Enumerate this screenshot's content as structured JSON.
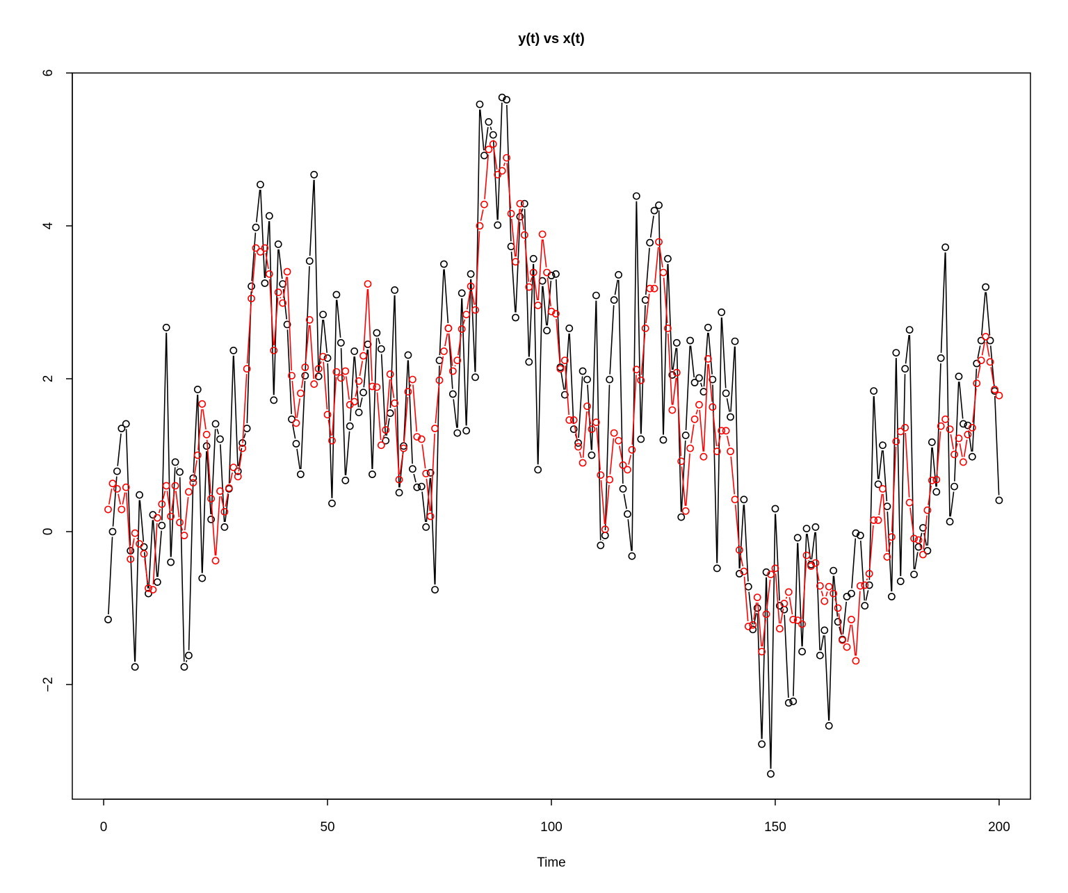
{
  "chart_data": {
    "type": "line",
    "title": "y(t) vs x(t)",
    "xlabel": "Time",
    "ylabel": "",
    "xlim": [
      -7,
      207
    ],
    "ylim": [
      -3.5,
      6
    ],
    "x_ticks": [
      0,
      50,
      100,
      150,
      200
    ],
    "y_ticks": [
      -2,
      0,
      2,
      4,
      6
    ],
    "grid": false,
    "legend": "none",
    "x": [
      1,
      2,
      3,
      4,
      5,
      6,
      7,
      8,
      9,
      10,
      11,
      12,
      13,
      14,
      15,
      16,
      17,
      18,
      19,
      20,
      21,
      22,
      23,
      24,
      25,
      26,
      27,
      28,
      29,
      30,
      31,
      32,
      33,
      34,
      35,
      36,
      37,
      38,
      39,
      40,
      41,
      42,
      43,
      44,
      45,
      46,
      47,
      48,
      49,
      50,
      51,
      52,
      53,
      54,
      55,
      56,
      57,
      58,
      59,
      60,
      61,
      62,
      63,
      64,
      65,
      66,
      67,
      68,
      69,
      70,
      71,
      72,
      73,
      74,
      75,
      76,
      77,
      78,
      79,
      80,
      81,
      82,
      83,
      84,
      85,
      86,
      87,
      88,
      89,
      90,
      91,
      92,
      93,
      94,
      95,
      96,
      97,
      98,
      99,
      100,
      101,
      102,
      103,
      104,
      105,
      106,
      107,
      108,
      109,
      110,
      111,
      112,
      113,
      114,
      115,
      116,
      117,
      118,
      119,
      120,
      121,
      122,
      123,
      124,
      125,
      126,
      127,
      128,
      129,
      130,
      131,
      132,
      133,
      134,
      135,
      136,
      137,
      138,
      139,
      140,
      141,
      142,
      143,
      144,
      145,
      146,
      147,
      148,
      149,
      150,
      151,
      152,
      153,
      154,
      155,
      156,
      157,
      158,
      159,
      160,
      161,
      162,
      163,
      164,
      165,
      166,
      167,
      168,
      169,
      170,
      171,
      172,
      173,
      174,
      175,
      176,
      177,
      178,
      179,
      180,
      181,
      182,
      183,
      184,
      185,
      186,
      187,
      188,
      189,
      190,
      191,
      192,
      193,
      194,
      195,
      196,
      197,
      198,
      199,
      200
    ],
    "series": [
      {
        "color": "#000000",
        "values": [
          -1.15,
          0.0,
          0.79,
          1.35,
          1.41,
          -0.25,
          -1.77,
          0.48,
          -0.2,
          -0.81,
          0.22,
          -0.66,
          0.08,
          2.67,
          -0.4,
          0.91,
          0.78,
          -1.77,
          -1.62,
          0.7,
          1.86,
          -0.61,
          1.12,
          0.16,
          1.41,
          1.21,
          0.06,
          0.56,
          2.37,
          0.79,
          1.16,
          1.35,
          3.21,
          3.98,
          4.54,
          3.25,
          4.13,
          1.72,
          3.76,
          3.24,
          2.71,
          1.47,
          1.15,
          0.75,
          2.04,
          3.54,
          4.67,
          2.03,
          2.84,
          2.27,
          0.37,
          3.1,
          2.47,
          0.67,
          1.38,
          2.36,
          1.56,
          1.82,
          2.45,
          0.75,
          2.6,
          2.39,
          1.19,
          1.55,
          3.16,
          0.51,
          1.12,
          2.31,
          0.82,
          0.58,
          0.59,
          0.06,
          0.77,
          -0.76,
          2.24,
          3.5,
          2.66,
          1.8,
          1.29,
          3.12,
          1.32,
          3.37,
          2.02,
          5.59,
          4.92,
          5.36,
          5.19,
          4.01,
          5.68,
          5.65,
          3.73,
          2.8,
          4.12,
          4.29,
          2.22,
          3.57,
          0.81,
          3.28,
          2.63,
          3.35,
          3.37,
          2.15,
          1.79,
          2.66,
          1.34,
          1.16,
          2.1,
          1.99,
          1.0,
          3.09,
          -0.18,
          -0.05,
          1.99,
          3.03,
          3.36,
          0.56,
          0.23,
          -0.32,
          4.39,
          1.21,
          3.03,
          3.78,
          4.2,
          4.27,
          1.2,
          3.57,
          2.05,
          2.47,
          0.19,
          1.26,
          2.5,
          1.95,
          2.01,
          1.83,
          2.67,
          1.99,
          -0.48,
          2.87,
          1.81,
          1.5,
          2.49,
          -0.55,
          0.42,
          -0.72,
          -1.28,
          -1.0,
          -2.78,
          -0.53,
          -3.17,
          0.3,
          -0.97,
          -1.02,
          -2.24,
          -2.22,
          -0.08,
          -1.57,
          0.04,
          -0.43,
          0.06,
          -1.62,
          -1.29,
          -2.54,
          -0.51,
          -1.18,
          -1.41,
          -0.85,
          -0.81,
          -0.02,
          -0.05,
          -0.97,
          -0.7,
          1.84,
          0.62,
          1.13,
          0.33,
          -0.85,
          2.34,
          -0.65,
          2.13,
          2.64,
          -0.56,
          -0.2,
          0.05,
          -0.25,
          1.17,
          0.52,
          2.27,
          3.72,
          0.13,
          0.59,
          2.03,
          1.41,
          1.39,
          0.98,
          2.2,
          2.5,
          3.2,
          2.5,
          1.84,
          0.41
        ]
      },
      {
        "color": "#ff0000",
        "values": [
          0.29,
          0.63,
          0.56,
          0.29,
          0.58,
          -0.36,
          -0.02,
          -0.16,
          -0.29,
          -0.74,
          -0.76,
          0.18,
          0.36,
          0.6,
          0.2,
          0.6,
          0.12,
          -0.05,
          0.52,
          0.64,
          1.0,
          1.67,
          1.27,
          0.43,
          -0.38,
          0.53,
          0.26,
          0.57,
          0.84,
          0.72,
          1.09,
          2.13,
          3.05,
          3.71,
          3.66,
          3.71,
          3.37,
          2.37,
          3.13,
          2.99,
          3.4,
          2.04,
          1.42,
          1.81,
          2.15,
          2.77,
          1.93,
          2.13,
          2.29,
          1.53,
          1.19,
          2.09,
          2.01,
          2.1,
          1.66,
          1.7,
          1.97,
          2.3,
          3.24,
          1.9,
          1.89,
          1.13,
          1.33,
          2.06,
          1.68,
          0.68,
          1.09,
          1.83,
          1.99,
          1.24,
          1.21,
          0.76,
          0.2,
          1.35,
          1.98,
          2.36,
          2.66,
          2.1,
          2.24,
          2.65,
          2.84,
          3.21,
          2.9,
          4.0,
          4.28,
          5.0,
          5.07,
          4.67,
          4.72,
          4.89,
          4.16,
          3.53,
          4.29,
          3.88,
          3.2,
          3.39,
          2.96,
          3.89,
          3.39,
          2.88,
          2.85,
          2.13,
          2.24,
          1.46,
          1.46,
          1.11,
          0.9,
          1.64,
          1.34,
          1.43,
          0.74,
          0.03,
          0.68,
          1.29,
          1.19,
          0.87,
          0.81,
          1.07,
          2.12,
          1.98,
          2.66,
          3.18,
          3.18,
          3.79,
          3.39,
          2.66,
          1.59,
          2.08,
          0.92,
          0.27,
          1.09,
          1.47,
          1.66,
          0.98,
          2.26,
          1.63,
          1.05,
          1.32,
          1.32,
          1.05,
          0.42,
          -0.24,
          -0.52,
          -1.24,
          -1.22,
          -0.86,
          -1.57,
          -1.08,
          -0.56,
          -0.48,
          -1.27,
          -0.94,
          -0.79,
          -1.15,
          -1.16,
          -1.21,
          -0.31,
          -0.45,
          -0.41,
          -0.71,
          -0.91,
          -0.72,
          -0.81,
          -1.0,
          -1.42,
          -1.51,
          -1.15,
          -1.69,
          -0.71,
          -0.7,
          -0.55,
          0.15,
          0.15,
          0.56,
          -0.33,
          -0.07,
          1.18,
          1.31,
          1.36,
          0.38,
          -0.09,
          -0.11,
          -0.3,
          0.28,
          0.67,
          0.68,
          1.38,
          1.47,
          1.34,
          1.01,
          1.22,
          0.91,
          1.27,
          1.36,
          1.94,
          2.24,
          2.55,
          2.22,
          1.86,
          1.78
        ]
      }
    ]
  }
}
